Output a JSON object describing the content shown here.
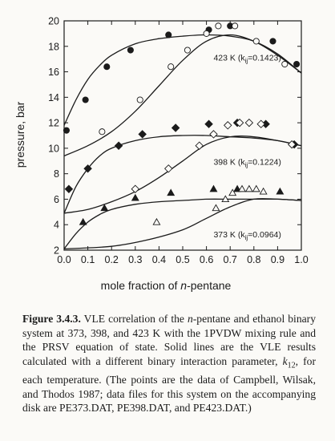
{
  "chart_data": {
    "type": "scatter",
    "title": "",
    "xlabel": "mole fraction of n-pentane",
    "xlabel_parts": [
      "mole fraction of ",
      "n",
      "-pentane"
    ],
    "ylabel": "pressure, bar",
    "xlim": [
      0,
      1
    ],
    "ylim": [
      2,
      20
    ],
    "xticks": [
      0,
      0.1,
      0.2,
      0.3,
      0.4,
      0.5,
      0.6,
      0.7,
      0.8,
      0.9,
      1.0
    ],
    "xtick_labels": [
      "0.0",
      "0.1",
      "0.2",
      "0.3",
      "0.4",
      "0.5",
      "0.6",
      "0.7",
      "0.8",
      "0.9",
      "1.0"
    ],
    "yticks": [
      2,
      4,
      6,
      8,
      10,
      12,
      14,
      16,
      18,
      20
    ],
    "ytick_labels": [
      "2",
      "4",
      "6",
      "8",
      "10",
      "12",
      "14",
      "16",
      "18",
      "20"
    ],
    "grid": false,
    "series": [
      {
        "name": "423 K (k12=0.1423)",
        "label_main": "423 K (k",
        "label_sub": "ij",
        "label_end": "=0.1423)",
        "label_pos": [
          0.63,
          16.9
        ],
        "color": "#1b1b1b",
        "liquid_points": [
          [
            0.01,
            11.4
          ],
          [
            0.09,
            13.8
          ],
          [
            0.18,
            16.4
          ],
          [
            0.28,
            17.7
          ],
          [
            0.44,
            18.9
          ],
          [
            0.61,
            19.3
          ],
          [
            0.7,
            19.6
          ],
          [
            0.88,
            18.4
          ],
          [
            0.98,
            16.6
          ]
        ],
        "vapor_points": [
          [
            0.16,
            11.3
          ],
          [
            0.32,
            13.8
          ],
          [
            0.45,
            16.4
          ],
          [
            0.52,
            17.7
          ],
          [
            0.6,
            19.0
          ],
          [
            0.65,
            19.6
          ],
          [
            0.72,
            19.6
          ],
          [
            0.81,
            18.4
          ],
          [
            0.93,
            16.6
          ]
        ],
        "bubble_curve": [
          [
            0.0,
            11.8
          ],
          [
            0.05,
            13.8
          ],
          [
            0.1,
            15.4
          ],
          [
            0.15,
            16.5
          ],
          [
            0.2,
            17.3
          ],
          [
            0.3,
            18.2
          ],
          [
            0.4,
            18.6
          ],
          [
            0.5,
            18.8
          ],
          [
            0.6,
            18.9
          ],
          [
            0.7,
            18.8
          ],
          [
            0.8,
            18.4
          ],
          [
            0.9,
            17.4
          ],
          [
            1.0,
            15.9
          ]
        ],
        "dew_curve": [
          [
            0.0,
            9.4
          ],
          [
            0.1,
            10.2
          ],
          [
            0.2,
            11.3
          ],
          [
            0.3,
            12.9
          ],
          [
            0.4,
            14.9
          ],
          [
            0.5,
            16.9
          ],
          [
            0.6,
            18.4
          ],
          [
            0.7,
            18.9
          ],
          [
            0.8,
            18.4
          ],
          [
            0.9,
            17.3
          ],
          [
            1.0,
            15.9
          ]
        ]
      },
      {
        "name": "398 K (k12=0.1224)",
        "label_main": "398 K (k",
        "label_sub": "ij",
        "label_end": "=0.1224)",
        "label_pos": [
          0.63,
          8.7
        ],
        "color": "#1b1b1b",
        "liquid_points": [
          [
            0.02,
            6.8
          ],
          [
            0.1,
            8.4
          ],
          [
            0.23,
            10.2
          ],
          [
            0.33,
            11.1
          ],
          [
            0.47,
            11.6
          ],
          [
            0.61,
            11.9
          ],
          [
            0.73,
            12.0
          ],
          [
            0.85,
            11.9
          ],
          [
            0.97,
            10.3
          ]
        ],
        "vapor_points": [
          [
            0.3,
            6.8
          ],
          [
            0.44,
            8.4
          ],
          [
            0.57,
            10.2
          ],
          [
            0.63,
            11.1
          ],
          [
            0.69,
            11.8
          ],
          [
            0.74,
            12.0
          ],
          [
            0.78,
            12.0
          ],
          [
            0.83,
            11.9
          ],
          [
            0.96,
            10.3
          ]
        ],
        "bubble_curve": [
          [
            0.0,
            4.9
          ],
          [
            0.05,
            7.0
          ],
          [
            0.1,
            8.4
          ],
          [
            0.15,
            9.4
          ],
          [
            0.2,
            10.0
          ],
          [
            0.3,
            10.6
          ],
          [
            0.4,
            10.9
          ],
          [
            0.5,
            11.0
          ],
          [
            0.6,
            11.0
          ],
          [
            0.7,
            10.9
          ],
          [
            0.8,
            10.8
          ],
          [
            0.9,
            10.6
          ],
          [
            1.0,
            10.2
          ]
        ],
        "dew_curve": [
          [
            0.0,
            4.9
          ],
          [
            0.1,
            5.2
          ],
          [
            0.2,
            5.8
          ],
          [
            0.3,
            6.6
          ],
          [
            0.4,
            7.7
          ],
          [
            0.5,
            9.0
          ],
          [
            0.6,
            10.3
          ],
          [
            0.7,
            10.9
          ],
          [
            0.8,
            10.9
          ],
          [
            0.9,
            10.6
          ],
          [
            1.0,
            10.2
          ]
        ]
      },
      {
        "name": "373 K (k12=0.0964)",
        "label_main": "373 K (k",
        "label_sub": "ij",
        "label_end": "=0.0964)",
        "label_pos": [
          0.63,
          3.0
        ],
        "color": "#1b1b1b",
        "liquid_points": [
          [
            0.08,
            4.2
          ],
          [
            0.17,
            5.3
          ],
          [
            0.3,
            6.1
          ],
          [
            0.45,
            6.5
          ],
          [
            0.63,
            6.8
          ],
          [
            0.73,
            6.8
          ],
          [
            0.91,
            6.6
          ]
        ],
        "vapor_points": [
          [
            0.39,
            4.2
          ],
          [
            0.64,
            5.3
          ],
          [
            0.68,
            6.0
          ],
          [
            0.71,
            6.5
          ],
          [
            0.75,
            6.8
          ],
          [
            0.78,
            6.8
          ],
          [
            0.81,
            6.8
          ],
          [
            0.84,
            6.6
          ]
        ],
        "bubble_curve": [
          [
            0.0,
            2.1
          ],
          [
            0.05,
            3.3
          ],
          [
            0.1,
            4.2
          ],
          [
            0.15,
            4.8
          ],
          [
            0.2,
            5.2
          ],
          [
            0.3,
            5.6
          ],
          [
            0.4,
            5.8
          ],
          [
            0.5,
            5.9
          ],
          [
            0.6,
            6.0
          ],
          [
            0.7,
            6.0
          ],
          [
            0.8,
            6.0
          ],
          [
            0.9,
            6.0
          ],
          [
            1.0,
            5.9
          ]
        ],
        "dew_curve": [
          [
            0.0,
            2.1
          ],
          [
            0.2,
            2.3
          ],
          [
            0.35,
            2.8
          ],
          [
            0.5,
            3.6
          ],
          [
            0.6,
            4.5
          ],
          [
            0.7,
            5.4
          ],
          [
            0.8,
            6.0
          ],
          [
            0.9,
            6.0
          ],
          [
            1.0,
            5.9
          ]
        ]
      }
    ],
    "markers": {
      "423": "circle",
      "398": "diamond",
      "373": "triangle"
    }
  },
  "caption": {
    "figure_label": "Figure 3.4.3.",
    "text_parts": [
      {
        "t": " VLE correlation of the ",
        "i": false
      },
      {
        "t": "n",
        "i": true
      },
      {
        "t": "-pentane and ethanol binary system at 373, 398, and 423 K with the 1PVDW mixing rule and the PRSV equation of state. Solid lines are the VLE results calculated with a different binary interaction parameter, ",
        "i": false
      },
      {
        "t": "k",
        "i": true
      },
      {
        "t": "12",
        "i": false,
        "sub": true
      },
      {
        "t": ", for each temperature. (The points are the data of Campbell, Wilsak, and Thodos 1987; data files for this system on the accompanying disk are PE373.DAT, PE398.DAT, and PE423.DAT.)",
        "i": false
      }
    ]
  }
}
